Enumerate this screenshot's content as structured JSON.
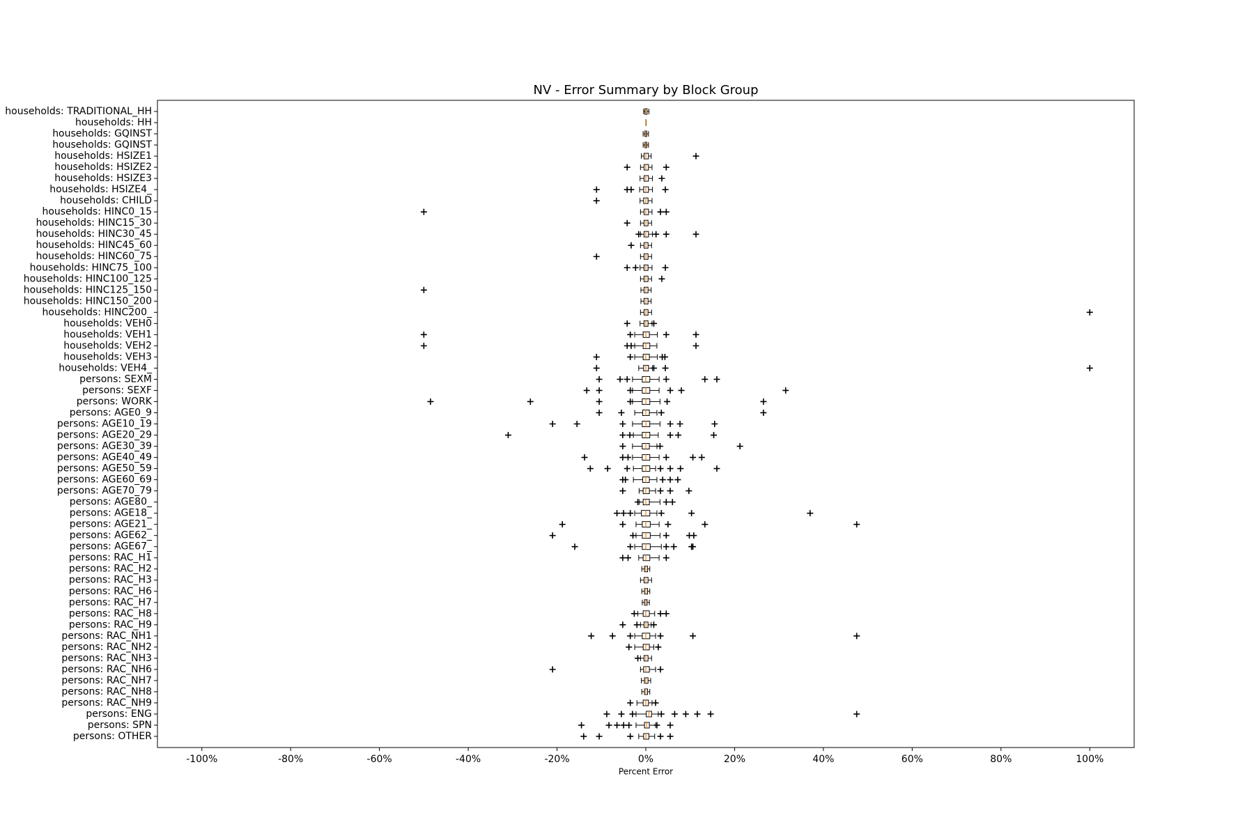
{
  "chart_data": {
    "type": "boxplot",
    "title": "NV - Error Summary by Block Group",
    "xlabel": "Percent Error",
    "xlim": [
      -110,
      110
    ],
    "xticks": [
      {
        "value": -100,
        "label": "-100%"
      },
      {
        "value": -80,
        "label": "-80%"
      },
      {
        "value": -60,
        "label": "-60%"
      },
      {
        "value": -40,
        "label": "-40%"
      },
      {
        "value": -20,
        "label": "-20%"
      },
      {
        "value": 0,
        "label": "0%"
      },
      {
        "value": 20,
        "label": "20%"
      },
      {
        "value": 40,
        "label": "40%"
      },
      {
        "value": 60,
        "label": "60%"
      },
      {
        "value": 80,
        "label": "80%"
      },
      {
        "value": 100,
        "label": "100%"
      }
    ],
    "box_color": "#000000",
    "median_color": "#ff7f0e",
    "flier_color": "#000000",
    "categories": [
      "households: TRADITIONAL_HH",
      "households: HH",
      "households: GQINST",
      "households: GQINST",
      "households: HSIZE1",
      "households: HSIZE2",
      "households: HSIZE3",
      "households: HSIZE4_",
      "households: CHILD",
      "households: HINC0_15",
      "households: HINC15_30",
      "households: HINC30_45",
      "households: HINC45_60",
      "households: HINC60_75",
      "households: HINC75_100",
      "households: HINC100_125",
      "households: HINC125_150",
      "households: HINC150_200",
      "households: HINC200_",
      "households: VEH0",
      "households: VEH1",
      "households: VEH2",
      "households: VEH3",
      "households: VEH4_",
      "persons: SEXM",
      "persons: SEXF",
      "persons: WORK",
      "persons: AGE0_9",
      "persons: AGE10_19",
      "persons: AGE20_29",
      "persons: AGE30_39",
      "persons: AGE40_49",
      "persons: AGE50_59",
      "persons: AGE60_69",
      "persons: AGE70_79",
      "persons: AGE80_",
      "persons: AGE18_",
      "persons: AGE21_",
      "persons: AGE62_",
      "persons: AGE67_",
      "persons: RAC_H1",
      "persons: RAC_H2",
      "persons: RAC_H3",
      "persons: RAC_H6",
      "persons: RAC_H7",
      "persons: RAC_H8",
      "persons: RAC_H9",
      "persons: RAC_NH1",
      "persons: RAC_NH2",
      "persons: RAC_NH3",
      "persons: RAC_NH6",
      "persons: RAC_NH7",
      "persons: RAC_NH8",
      "persons: RAC_NH9",
      "persons: ENG",
      "persons: SPN",
      "persons: OTHER"
    ],
    "boxes": [
      {
        "whislo": -0.5,
        "q1": -0.2,
        "median": 0,
        "q3": 0.3,
        "whishi": 0.7,
        "fliers": []
      },
      {
        "whislo": 0,
        "q1": 0,
        "median": 0,
        "q3": 0,
        "whishi": 0,
        "fliers": []
      },
      {
        "whislo": -0.6,
        "q1": -0.2,
        "median": 0,
        "q3": 0.2,
        "whishi": 0.6,
        "fliers": []
      },
      {
        "whislo": -0.6,
        "q1": -0.2,
        "median": 0,
        "q3": 0.2,
        "whishi": 0.6,
        "fliers": []
      },
      {
        "whislo": -1,
        "q1": -0.4,
        "median": 0,
        "q3": 0.6,
        "whishi": 1.2,
        "fliers": [
          11.3
        ]
      },
      {
        "whislo": -1.2,
        "q1": -0.4,
        "median": 0,
        "q3": 0.6,
        "whishi": 1.4,
        "fliers": [
          -4.2,
          4.6
        ]
      },
      {
        "whislo": -1.3,
        "q1": -0.4,
        "median": 0,
        "q3": 0.6,
        "whishi": 1.5,
        "fliers": [
          3.6
        ]
      },
      {
        "whislo": -1.4,
        "q1": -0.5,
        "median": 0,
        "q3": 0.6,
        "whishi": 1.5,
        "fliers": [
          -11.1,
          -4.2,
          -3.3,
          4.4
        ]
      },
      {
        "whislo": -1.3,
        "q1": -0.5,
        "median": 0,
        "q3": 0.5,
        "whishi": 1.4,
        "fliers": [
          -11.1
        ]
      },
      {
        "whislo": -1.2,
        "q1": -0.4,
        "median": 0,
        "q3": 0.6,
        "whishi": 1.4,
        "fliers": [
          -50,
          3.3,
          4.6
        ]
      },
      {
        "whislo": -1.2,
        "q1": -0.4,
        "median": 0,
        "q3": 0.5,
        "whishi": 1.3,
        "fliers": [
          -4.2
        ]
      },
      {
        "whislo": -1.2,
        "q1": -0.4,
        "median": 0,
        "q3": 0.6,
        "whishi": 1.5,
        "fliers": [
          -1.6,
          2.3,
          4.6,
          11.3
        ]
      },
      {
        "whislo": -1.2,
        "q1": -0.4,
        "median": 0,
        "q3": 0.5,
        "whishi": 1.3,
        "fliers": [
          -3.3
        ]
      },
      {
        "whislo": -1.2,
        "q1": -0.4,
        "median": 0,
        "q3": 0.5,
        "whishi": 1.3,
        "fliers": [
          -11.1
        ]
      },
      {
        "whislo": -1.3,
        "q1": -0.4,
        "median": 0,
        "q3": 0.5,
        "whishi": 1.4,
        "fliers": [
          -4.2,
          -2.3,
          4.4
        ]
      },
      {
        "whislo": -1.2,
        "q1": -0.4,
        "median": 0,
        "q3": 0.5,
        "whishi": 1.3,
        "fliers": [
          3.6
        ]
      },
      {
        "whislo": -1.1,
        "q1": -0.4,
        "median": 0,
        "q3": 0.5,
        "whishi": 1.2,
        "fliers": [
          -50
        ]
      },
      {
        "whislo": -1.1,
        "q1": -0.4,
        "median": 0,
        "q3": 0.5,
        "whishi": 1.2,
        "fliers": []
      },
      {
        "whislo": -1.2,
        "q1": -0.4,
        "median": 0,
        "q3": 0.5,
        "whishi": 1.3,
        "fliers": [
          100
        ]
      },
      {
        "whislo": -1.3,
        "q1": -0.4,
        "median": 0,
        "q3": 0.5,
        "whishi": 1.4,
        "fliers": [
          -4.2,
          1.8
        ]
      },
      {
        "whislo": -2.5,
        "q1": -0.6,
        "median": 0,
        "q3": 0.8,
        "whishi": 2.6,
        "fliers": [
          -50,
          -3.5,
          4.6,
          11.3
        ]
      },
      {
        "whislo": -2.5,
        "q1": -0.6,
        "median": 0,
        "q3": 0.9,
        "whishi": 2.5,
        "fliers": [
          -50,
          -4.2,
          -3.3,
          11.3
        ]
      },
      {
        "whislo": -2.5,
        "q1": -0.6,
        "median": 0,
        "q3": 0.8,
        "whishi": 2.6,
        "fliers": [
          -11.1,
          -3.5,
          3.7,
          4.3
        ]
      },
      {
        "whislo": -1.6,
        "q1": -0.5,
        "median": 0,
        "q3": 0.6,
        "whishi": 1.5,
        "fliers": [
          -11.1,
          1.8,
          4.4,
          100
        ]
      },
      {
        "whislo": -3,
        "q1": -0.8,
        "median": 0,
        "q3": 0.9,
        "whishi": 3,
        "fliers": [
          -10.5,
          -5.8,
          -4.2,
          4.6,
          13.3,
          16
        ]
      },
      {
        "whislo": -3,
        "q1": -0.8,
        "median": 0,
        "q3": 0.9,
        "whishi": 3,
        "fliers": [
          -13.3,
          -10.5,
          -3.5,
          5.5,
          8,
          31.5
        ]
      },
      {
        "whislo": -3,
        "q1": -0.8,
        "median": 0,
        "q3": 0.9,
        "whishi": 3.2,
        "fliers": [
          -48.5,
          -26,
          -10.5,
          -3.5,
          4.8,
          26.5
        ]
      },
      {
        "whislo": -2.5,
        "q1": -0.7,
        "median": 0,
        "q3": 0.8,
        "whishi": 2.5,
        "fliers": [
          -10.5,
          -5.5,
          3.5,
          26.5
        ]
      },
      {
        "whislo": -3,
        "q1": -0.8,
        "median": 0,
        "q3": 0.9,
        "whishi": 3.2,
        "fliers": [
          -21,
          -15.5,
          -5.2,
          5.5,
          7.7,
          15.5
        ]
      },
      {
        "whislo": -2.8,
        "q1": -0.8,
        "median": 0,
        "q3": 0.9,
        "whishi": 2.8,
        "fliers": [
          -31,
          -5.2,
          -3.6,
          5.5,
          7.3,
          15.3
        ]
      },
      {
        "whislo": -3,
        "q1": -0.8,
        "median": 0,
        "q3": 0.8,
        "whishi": 2.5,
        "fliers": [
          -5.2,
          3.2,
          21.2
        ]
      },
      {
        "whislo": -3,
        "q1": -0.8,
        "median": 0,
        "q3": 0.9,
        "whishi": 3,
        "fliers": [
          -13.8,
          -5.2,
          -4,
          4.6,
          10.6,
          12.6
        ]
      },
      {
        "whislo": -2.8,
        "q1": -0.8,
        "median": 0,
        "q3": 0.9,
        "whishi": 2.2,
        "fliers": [
          -12.5,
          -8.6,
          -4.2,
          3.3,
          5.5,
          7.8,
          16
        ]
      },
      {
        "whislo": -2.8,
        "q1": -0.7,
        "median": 0,
        "q3": 0.8,
        "whishi": 2.5,
        "fliers": [
          -5.2,
          -4.6,
          3.8,
          5.5,
          7.2
        ]
      },
      {
        "whislo": -1.5,
        "q1": -0.6,
        "median": 0,
        "q3": 0.8,
        "whishi": 2.2,
        "fliers": [
          -5.2,
          3.3,
          5.5,
          9.7
        ]
      },
      {
        "whislo": -1.5,
        "q1": -0.6,
        "median": 0,
        "q3": 0.8,
        "whishi": 3.2,
        "fliers": [
          -1.8,
          4.6,
          6
        ]
      },
      {
        "whislo": -2.5,
        "q1": -1,
        "median": 0,
        "q3": 0.9,
        "whishi": 2.5,
        "fliers": [
          -6.5,
          -5,
          -3.5,
          3.5,
          10.3,
          37
        ]
      },
      {
        "whislo": -2.2,
        "q1": -0.8,
        "median": 0,
        "q3": 1,
        "whishi": 3,
        "fliers": [
          -18.8,
          -5.2,
          5,
          13.3,
          47.5
        ]
      },
      {
        "whislo": -2.2,
        "q1": -0.8,
        "median": 0,
        "q3": 1,
        "whishi": 3.2,
        "fliers": [
          -21,
          -2.9,
          4.6,
          9.8,
          10.8
        ]
      },
      {
        "whislo": -2.5,
        "q1": -0.8,
        "median": 0,
        "q3": 1,
        "whishi": 3.5,
        "fliers": [
          -16,
          -3.5,
          4.6,
          6.3,
          10.3,
          10.6
        ]
      },
      {
        "whislo": -1.6,
        "q1": -0.6,
        "median": 0,
        "q3": 0.9,
        "whishi": 3,
        "fliers": [
          -5.2,
          -4,
          4.6
        ]
      },
      {
        "whislo": -0.9,
        "q1": -0.3,
        "median": 0,
        "q3": 0.4,
        "whishi": 0.9,
        "fliers": []
      },
      {
        "whislo": -1.2,
        "q1": -0.4,
        "median": 0,
        "q3": 0.5,
        "whishi": 1.3,
        "fliers": []
      },
      {
        "whislo": -0.9,
        "q1": -0.3,
        "median": 0,
        "q3": 0.4,
        "whishi": 0.9,
        "fliers": []
      },
      {
        "whislo": -0.8,
        "q1": -0.3,
        "median": 0,
        "q3": 0.3,
        "whishi": 0.8,
        "fliers": []
      },
      {
        "whislo": -1.8,
        "q1": -0.6,
        "median": 0,
        "q3": 0.8,
        "whishi": 2,
        "fliers": [
          -2.6,
          3.3,
          4.6
        ]
      },
      {
        "whislo": -1.2,
        "q1": -0.4,
        "median": 0,
        "q3": 0.5,
        "whishi": 1.2,
        "fliers": [
          -5.2,
          -2,
          1.8
        ]
      },
      {
        "whislo": -2.5,
        "q1": -0.8,
        "median": 0,
        "q3": 0.9,
        "whishi": 2.2,
        "fliers": [
          -12.3,
          -7.5,
          -3.5,
          3.3,
          10.6,
          47.5
        ]
      },
      {
        "whislo": -2.5,
        "q1": -0.6,
        "median": 0,
        "q3": 0.8,
        "whishi": 1.8,
        "fliers": [
          -3.8,
          2.8
        ]
      },
      {
        "whislo": -1.2,
        "q1": -0.4,
        "median": 0,
        "q3": 0.5,
        "whishi": 1.3,
        "fliers": [
          -1.8
        ]
      },
      {
        "whislo": -1.2,
        "q1": -0.5,
        "median": 0,
        "q3": 0.8,
        "whishi": 2.2,
        "fliers": [
          -21,
          3.3
        ]
      },
      {
        "whislo": -1,
        "q1": -0.3,
        "median": 0,
        "q3": 0.5,
        "whishi": 1.1,
        "fliers": []
      },
      {
        "whislo": -0.9,
        "q1": -0.3,
        "median": 0,
        "q3": 0.4,
        "whishi": 0.9,
        "fliers": []
      },
      {
        "whislo": -2,
        "q1": -0.6,
        "median": 0,
        "q3": 0.6,
        "whishi": 1.4,
        "fliers": [
          -3.5,
          2.2
        ]
      },
      {
        "whislo": -2.2,
        "q1": 0.1,
        "median": 0.7,
        "q3": 1.3,
        "whishi": 2.8,
        "fliers": [
          -8.8,
          -5.5,
          -3,
          3.5,
          6.5,
          9,
          11.6,
          14.6,
          47.5
        ]
      },
      {
        "whislo": -2.2,
        "q1": -0.3,
        "median": 0.2,
        "q3": 0.8,
        "whishi": 2.2,
        "fliers": [
          -14.5,
          -8.3,
          -6.5,
          -5,
          -3.8,
          2.5,
          5.5
        ]
      },
      {
        "whislo": -1.6,
        "q1": -0.5,
        "median": 0,
        "q3": 0.7,
        "whishi": 2,
        "fliers": [
          -14,
          -10.5,
          -3.5,
          3.3,
          5.5
        ]
      }
    ]
  }
}
